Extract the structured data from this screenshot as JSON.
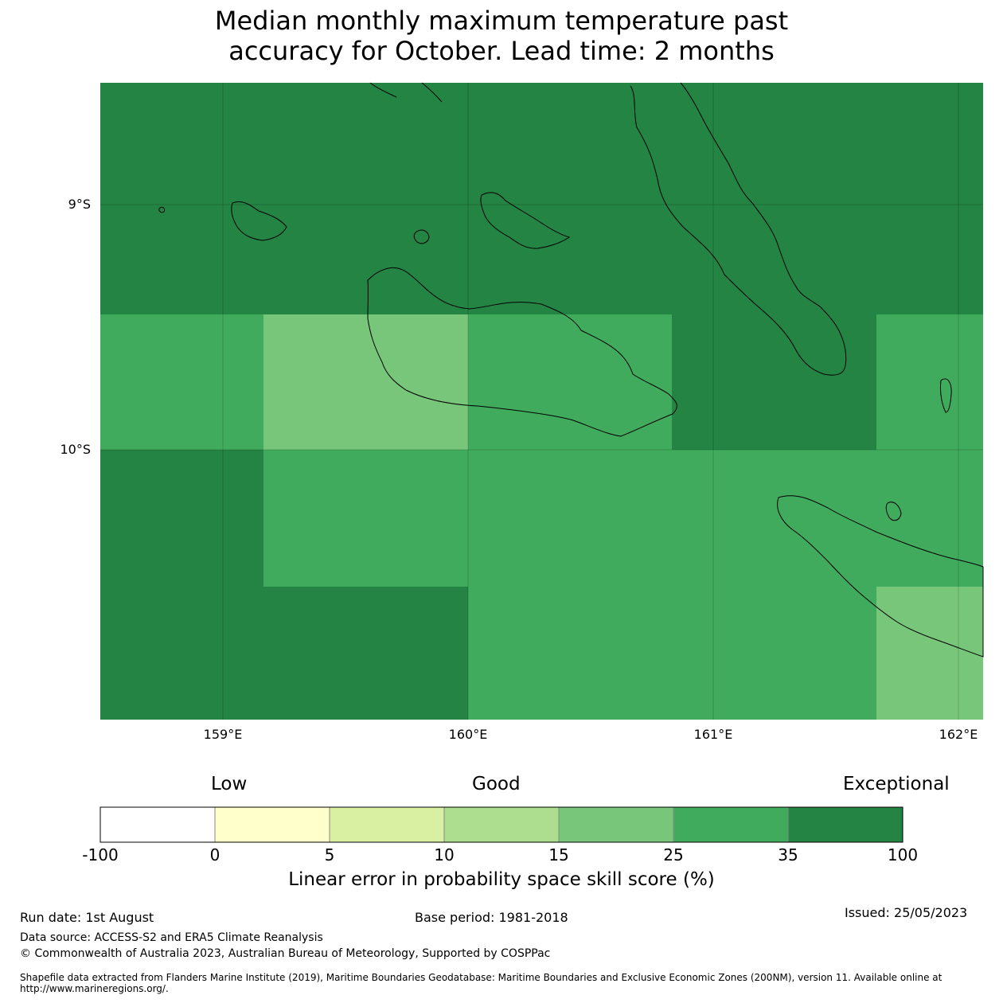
{
  "title": {
    "line1": "Median monthly maximum temperature past",
    "line2": "accuracy for October. Lead time: 2 months"
  },
  "map": {
    "lat_labels": [
      "9°S",
      "10°S"
    ],
    "lon_labels": [
      "159°E",
      "160°E",
      "161°E",
      "162°E"
    ],
    "ocean_grid_colors": {
      "exceptional": "#238443",
      "good_high": "#41ab5d",
      "good_mid": "#78c679"
    },
    "coastline_color": "#000000"
  },
  "colorbar": {
    "categories": {
      "low": "Low",
      "good": "Good",
      "exceptional": "Exceptional"
    },
    "ticks": [
      "-100",
      "0",
      "5",
      "10",
      "15",
      "25",
      "35",
      "100"
    ],
    "colors": [
      "#ffffff",
      "#ffffcc",
      "#d9f0a3",
      "#addd8e",
      "#78c679",
      "#41ab5d",
      "#238443"
    ],
    "label": "Linear error in probability space skill score (%)"
  },
  "footer": {
    "run_date": "Run date: 1st August",
    "base_period": "Base period: 1981-2018",
    "issued": "Issued: 25/05/2023",
    "data_source": "Data source: ACCESS-S2 and ERA5 Climate Reanalysis",
    "copyright": "© Commonwealth of Australia 2023, Australian Bureau of Meteorology, Supported by COSPPac",
    "shapefile": "Shapefile data extracted from Flanders Marine Institute (2019), Maritime Boundaries Geodatabase: Maritime Boundaries and Exclusive Economic Zones (200NM), version 11. Available online at http://www.marineregions.org/."
  }
}
